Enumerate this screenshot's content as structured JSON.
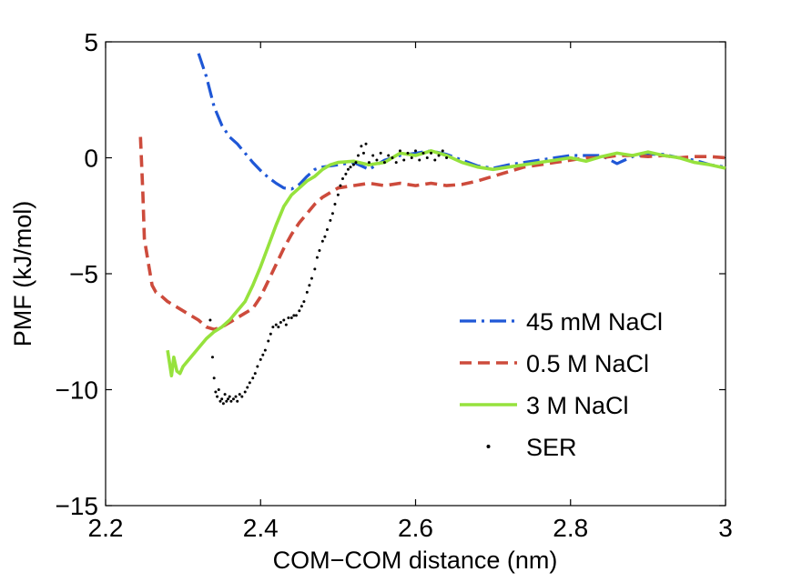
{
  "chart_data": {
    "type": "line",
    "title": "",
    "xlabel": "COM−COM distance (nm)",
    "ylabel": "PMF (kJ/mol)",
    "xlim": [
      2.2,
      3.0
    ],
    "ylim": [
      -15,
      5
    ],
    "xticks": [
      2.2,
      2.4,
      2.6,
      2.8,
      3.0
    ],
    "xtick_labels": [
      "2.2",
      "2.4",
      "2.6",
      "2.8",
      "3"
    ],
    "yticks": [
      -15,
      -10,
      -5,
      0,
      5
    ],
    "ytick_labels": [
      "−15",
      "−10",
      "−5",
      "0",
      "5"
    ],
    "grid": false,
    "legend_position": "lower-right",
    "series": [
      {
        "name": "45 mM NaCl",
        "style": "dashdot",
        "color": "#1f57d6",
        "x": [
          2.32,
          2.33,
          2.34,
          2.35,
          2.36,
          2.37,
          2.38,
          2.39,
          2.4,
          2.41,
          2.42,
          2.43,
          2.44,
          2.45,
          2.46,
          2.47,
          2.48,
          2.5,
          2.52,
          2.54,
          2.56,
          2.58,
          2.6,
          2.62,
          2.64,
          2.66,
          2.68,
          2.7,
          2.72,
          2.74,
          2.76,
          2.78,
          2.8,
          2.82,
          2.84,
          2.86,
          2.88,
          2.9,
          2.92,
          2.94,
          2.96,
          2.98,
          3.0
        ],
        "y": [
          4.5,
          3.5,
          2.2,
          1.4,
          0.9,
          0.6,
          0.2,
          -0.2,
          -0.55,
          -0.85,
          -1.1,
          -1.3,
          -1.35,
          -1.15,
          -0.8,
          -0.5,
          -0.4,
          -0.3,
          -0.2,
          -0.5,
          -0.1,
          0.1,
          0.2,
          0.3,
          0.15,
          -0.1,
          -0.35,
          -0.45,
          -0.3,
          -0.2,
          -0.1,
          0.0,
          0.1,
          0.1,
          0.1,
          -0.25,
          0.05,
          0.15,
          0.15,
          0.0,
          -0.1,
          -0.3,
          -0.4
        ]
      },
      {
        "name": "0.5 M NaCl",
        "style": "dashed",
        "color": "#cd4b3c",
        "x": [
          2.245,
          2.248,
          2.25,
          2.255,
          2.26,
          2.265,
          2.27,
          2.28,
          2.29,
          2.3,
          2.31,
          2.32,
          2.33,
          2.34,
          2.35,
          2.36,
          2.37,
          2.38,
          2.39,
          2.4,
          2.41,
          2.42,
          2.43,
          2.44,
          2.45,
          2.46,
          2.47,
          2.48,
          2.49,
          2.5,
          2.52,
          2.54,
          2.56,
          2.58,
          2.6,
          2.62,
          2.64,
          2.66,
          2.68,
          2.7,
          2.72,
          2.74,
          2.76,
          2.78,
          2.8,
          2.82,
          2.84,
          2.86,
          2.88,
          2.9,
          2.92,
          2.94,
          2.96,
          2.98,
          3.0
        ],
        "y": [
          0.9,
          -1.5,
          -3.5,
          -4.5,
          -5.5,
          -5.8,
          -5.9,
          -6.2,
          -6.4,
          -6.6,
          -6.8,
          -7.0,
          -7.3,
          -7.4,
          -7.3,
          -7.1,
          -6.9,
          -6.7,
          -6.5,
          -6.0,
          -5.3,
          -4.6,
          -3.9,
          -3.3,
          -2.8,
          -2.4,
          -2.0,
          -1.7,
          -1.5,
          -1.3,
          -1.2,
          -1.1,
          -1.2,
          -1.1,
          -1.2,
          -1.1,
          -1.2,
          -1.15,
          -1.0,
          -0.8,
          -0.6,
          -0.4,
          -0.3,
          -0.2,
          -0.1,
          0.0,
          0.0,
          0.1,
          0.1,
          0.05,
          0.1,
          0.0,
          0.05,
          0.05,
          0.0
        ]
      },
      {
        "name": "3 M NaCl",
        "style": "solid",
        "color": "#96e23d",
        "x": [
          2.28,
          2.285,
          2.288,
          2.292,
          2.296,
          2.3,
          2.31,
          2.32,
          2.33,
          2.34,
          2.35,
          2.36,
          2.37,
          2.38,
          2.39,
          2.4,
          2.41,
          2.42,
          2.43,
          2.44,
          2.45,
          2.46,
          2.47,
          2.48,
          2.49,
          2.5,
          2.52,
          2.54,
          2.56,
          2.58,
          2.6,
          2.62,
          2.64,
          2.66,
          2.68,
          2.7,
          2.72,
          2.74,
          2.76,
          2.78,
          2.8,
          2.82,
          2.84,
          2.86,
          2.88,
          2.9,
          2.92,
          2.94,
          2.96,
          2.98,
          3.0
        ],
        "y": [
          -8.3,
          -9.4,
          -8.6,
          -9.2,
          -9.3,
          -9.0,
          -8.6,
          -8.2,
          -7.8,
          -7.5,
          -7.3,
          -7.0,
          -6.6,
          -6.2,
          -5.5,
          -4.7,
          -3.8,
          -2.9,
          -2.1,
          -1.6,
          -1.3,
          -1.0,
          -0.8,
          -0.5,
          -0.3,
          -0.2,
          -0.15,
          -0.3,
          -0.2,
          0.2,
          0.1,
          0.3,
          0.1,
          -0.2,
          -0.4,
          -0.5,
          -0.4,
          -0.3,
          -0.2,
          -0.1,
          0.0,
          -0.15,
          0.05,
          0.2,
          0.1,
          0.25,
          0.1,
          0.0,
          -0.2,
          -0.3,
          -0.45
        ]
      },
      {
        "name": "SER",
        "style": "dots",
        "color": "#000000",
        "x": [
          2.335,
          2.338,
          2.34,
          2.342,
          2.344,
          2.346,
          2.348,
          2.35,
          2.352,
          2.354,
          2.356,
          2.358,
          2.36,
          2.362,
          2.365,
          2.368,
          2.37,
          2.373,
          2.376,
          2.38,
          2.383,
          2.386,
          2.39,
          2.393,
          2.396,
          2.4,
          2.403,
          2.406,
          2.41,
          2.413,
          2.416,
          2.42,
          2.423,
          2.426,
          2.43,
          2.433,
          2.436,
          2.44,
          2.443,
          2.446,
          2.45,
          2.453,
          2.456,
          2.46,
          2.463,
          2.466,
          2.47,
          2.473,
          2.476,
          2.48,
          2.483,
          2.486,
          2.49,
          2.493,
          2.496,
          2.5,
          2.503,
          2.506,
          2.51,
          2.513,
          2.516,
          2.52,
          2.523,
          2.526,
          2.53,
          2.533,
          2.536,
          2.54,
          2.545,
          2.55,
          2.555,
          2.56,
          2.565,
          2.57,
          2.575,
          2.58,
          2.585,
          2.59,
          2.595,
          2.6,
          2.605,
          2.61,
          2.615,
          2.62,
          2.625,
          2.63,
          2.635,
          2.64
        ],
        "y": [
          -7.0,
          -8.6,
          -9.5,
          -10.1,
          -10.3,
          -10.0,
          -10.5,
          -10.4,
          -10.6,
          -10.2,
          -10.5,
          -10.4,
          -10.3,
          -10.5,
          -10.4,
          -10.3,
          -10.5,
          -10.2,
          -10.3,
          -10.1,
          -9.9,
          -9.7,
          -9.5,
          -9.3,
          -9.0,
          -8.7,
          -8.5,
          -8.3,
          -7.9,
          -7.6,
          -7.3,
          -7.2,
          -7.3,
          -7.1,
          -7.0,
          -7.2,
          -6.9,
          -6.9,
          -6.8,
          -6.8,
          -6.6,
          -6.4,
          -6.2,
          -5.8,
          -5.5,
          -5.2,
          -4.8,
          -4.3,
          -4.0,
          -3.6,
          -3.4,
          -3.1,
          -2.7,
          -2.4,
          -2.0,
          -1.6,
          -1.2,
          -0.9,
          -0.7,
          -0.5,
          -0.4,
          -0.3,
          -0.2,
          0.1,
          0.5,
          0.2,
          0.6,
          -0.2,
          0.1,
          -0.1,
          0.2,
          -0.2,
          0.1,
          0.0,
          -0.2,
          0.3,
          -0.1,
          0.2,
          0.0,
          0.3,
          -0.1,
          0.2,
          0.0,
          0.2,
          -0.1,
          0.1,
          0.3,
          0.0
        ]
      }
    ]
  }
}
